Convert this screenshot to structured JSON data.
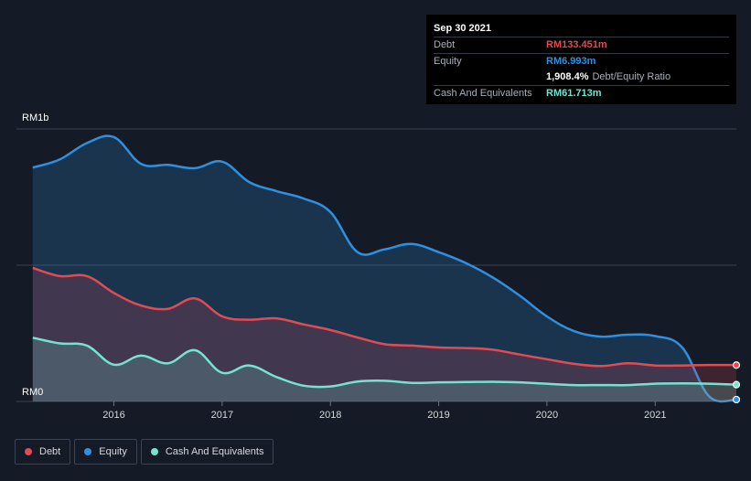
{
  "colors": {
    "debt": "#e04b54",
    "equity": "#2f8fe0",
    "cash": "#76e3d0",
    "background": "#151b26",
    "grid": "#3a414d"
  },
  "tooltip": {
    "date": "Sep 30 2021",
    "debt_label": "Debt",
    "debt_value": "RM133.451m",
    "equity_label": "Equity",
    "equity_value": "RM6.993m",
    "ratio_value": "1,908.4%",
    "ratio_label": "Debt/Equity Ratio",
    "cash_label": "Cash And Equivalents",
    "cash_value": "RM61.713m"
  },
  "legend": {
    "debt": "Debt",
    "equity": "Equity",
    "cash": "Cash And Equivalents"
  },
  "chart_data": {
    "type": "area",
    "title": "",
    "xlabel": "",
    "ylabel": "",
    "ylim": [
      0,
      1000
    ],
    "xlim": [
      2015.1,
      2021.75
    ],
    "y_tick_labels": [
      {
        "value": 1000,
        "label": "RM1b"
      },
      {
        "value": 0,
        "label": "RM0"
      }
    ],
    "x_ticks": [
      2016,
      2017,
      2018,
      2019,
      2020,
      2021
    ],
    "x_tick_labels": [
      "2016",
      "2017",
      "2018",
      "2019",
      "2020",
      "2021"
    ],
    "grid": true,
    "unit": "RM m",
    "series": [
      {
        "name": "Equity",
        "color_key": "equity",
        "points": [
          [
            2015.25,
            858
          ],
          [
            2015.5,
            888
          ],
          [
            2015.75,
            948
          ],
          [
            2016.0,
            970
          ],
          [
            2016.25,
            872
          ],
          [
            2016.5,
            868
          ],
          [
            2016.75,
            856
          ],
          [
            2017.0,
            880
          ],
          [
            2017.25,
            805
          ],
          [
            2017.5,
            772
          ],
          [
            2017.75,
            745
          ],
          [
            2018.0,
            695
          ],
          [
            2018.25,
            548
          ],
          [
            2018.5,
            558
          ],
          [
            2018.75,
            578
          ],
          [
            2019.0,
            548
          ],
          [
            2019.25,
            508
          ],
          [
            2019.5,
            455
          ],
          [
            2019.75,
            388
          ],
          [
            2020.0,
            312
          ],
          [
            2020.25,
            258
          ],
          [
            2020.5,
            238
          ],
          [
            2020.75,
            245
          ],
          [
            2021.0,
            240
          ],
          [
            2021.25,
            198
          ],
          [
            2021.5,
            18
          ],
          [
            2021.75,
            7
          ]
        ]
      },
      {
        "name": "Debt",
        "color_key": "debt",
        "points": [
          [
            2015.25,
            490
          ],
          [
            2015.5,
            460
          ],
          [
            2015.75,
            460
          ],
          [
            2016.0,
            398
          ],
          [
            2016.25,
            352
          ],
          [
            2016.5,
            340
          ],
          [
            2016.75,
            378
          ],
          [
            2017.0,
            312
          ],
          [
            2017.25,
            300
          ],
          [
            2017.5,
            305
          ],
          [
            2017.75,
            283
          ],
          [
            2018.0,
            262
          ],
          [
            2018.25,
            235
          ],
          [
            2018.5,
            210
          ],
          [
            2018.75,
            205
          ],
          [
            2019.0,
            198
          ],
          [
            2019.25,
            196
          ],
          [
            2019.5,
            190
          ],
          [
            2019.75,
            172
          ],
          [
            2020.0,
            155
          ],
          [
            2020.25,
            138
          ],
          [
            2020.5,
            130
          ],
          [
            2020.75,
            140
          ],
          [
            2021.0,
            132
          ],
          [
            2021.25,
            132
          ],
          [
            2021.5,
            134
          ],
          [
            2021.75,
            133.451
          ]
        ]
      },
      {
        "name": "Cash And Equivalents",
        "color_key": "cash",
        "points": [
          [
            2015.25,
            234
          ],
          [
            2015.5,
            213
          ],
          [
            2015.75,
            205
          ],
          [
            2016.0,
            135
          ],
          [
            2016.25,
            168
          ],
          [
            2016.5,
            140
          ],
          [
            2016.75,
            188
          ],
          [
            2017.0,
            105
          ],
          [
            2017.25,
            132
          ],
          [
            2017.5,
            90
          ],
          [
            2017.75,
            58
          ],
          [
            2018.0,
            55
          ],
          [
            2018.25,
            73
          ],
          [
            2018.5,
            76
          ],
          [
            2018.75,
            68
          ],
          [
            2019.0,
            70
          ],
          [
            2019.25,
            71
          ],
          [
            2019.5,
            72
          ],
          [
            2019.75,
            70
          ],
          [
            2020.0,
            65
          ],
          [
            2020.25,
            60
          ],
          [
            2020.5,
            60
          ],
          [
            2020.75,
            60
          ],
          [
            2021.0,
            65
          ],
          [
            2021.25,
            66
          ],
          [
            2021.5,
            65
          ],
          [
            2021.75,
            61.713
          ]
        ]
      }
    ]
  }
}
